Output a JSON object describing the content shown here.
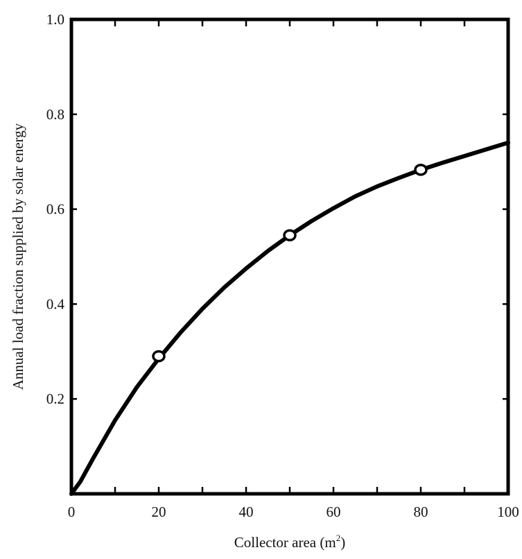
{
  "chart_data": {
    "type": "line",
    "title": "",
    "xlabel": "Collector area (m",
    "xlabel_sup": "2",
    "xlabel_close": ")",
    "ylabel": "Annual load fraction supplied by solar energy",
    "xlim": [
      0,
      100
    ],
    "ylim": [
      0,
      1.0
    ],
    "x_ticks": [
      0,
      20,
      40,
      60,
      80,
      100
    ],
    "x_tick_labels": [
      "0",
      "20",
      "40",
      "60",
      "80",
      "100"
    ],
    "y_ticks": [
      0.2,
      0.4,
      0.6,
      0.8,
      1.0
    ],
    "y_tick_labels": [
      "0.2",
      "0.4",
      "0.6",
      "0.8",
      "1.0"
    ],
    "grid": false,
    "series": [
      {
        "x": [
          0,
          2,
          5,
          10,
          15,
          20,
          25,
          30,
          35,
          40,
          45,
          50,
          55,
          60,
          65,
          70,
          75,
          80,
          85,
          90,
          95,
          100
        ],
        "y": [
          0.0,
          0.025,
          0.075,
          0.155,
          0.225,
          0.285,
          0.34,
          0.39,
          0.435,
          0.475,
          0.512,
          0.545,
          0.575,
          0.602,
          0.627,
          0.648,
          0.666,
          0.683,
          0.698,
          0.712,
          0.726,
          0.74
        ]
      }
    ],
    "markers": {
      "x": [
        20,
        50,
        80
      ],
      "y": [
        0.29,
        0.545,
        0.683
      ]
    }
  }
}
